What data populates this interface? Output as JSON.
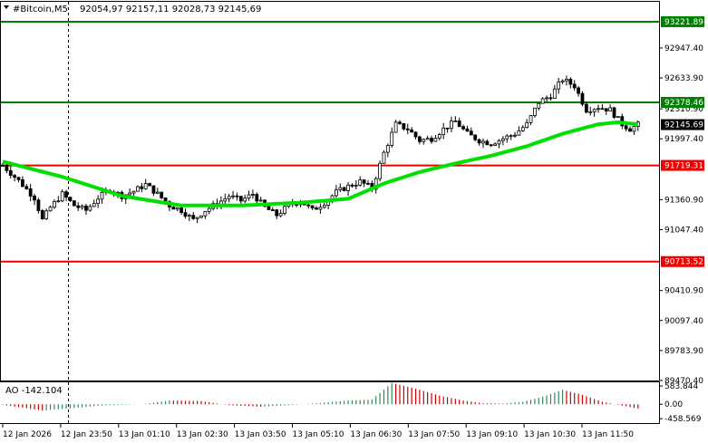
{
  "header": {
    "symbol": "#Bitcoin,M5",
    "ohlc": "92054,97 92157,11 92028,73 92145,69"
  },
  "indicator": {
    "title": "AO -142.104",
    "ticks": [
      "583.844",
      "0.00",
      "-458.569"
    ]
  },
  "colors": {
    "up_bar": "#2e8b57",
    "down_bar": "#cc0000",
    "ma": "#00e000",
    "support": "#ee0000",
    "resistance": "#008000",
    "price_label_bg": "#000000"
  },
  "chart_data": [
    {
      "type": "candlestick",
      "ylim": [
        89470,
        93430
      ],
      "y_ticks": [
        "92947.40",
        "92633.90",
        "92310.90",
        "91997.40",
        "91360.90",
        "91047.40",
        "90410.90",
        "90097.40",
        "89783.90",
        "89470.40"
      ],
      "x_ticks": [
        "12 Jan 2026",
        "12 Jan 23:50",
        "13 Jan 01:10",
        "13 Jan 02:30",
        "13 Jan 03:50",
        "13 Jan 05:10",
        "13 Jan 06:30",
        "13 Jan 07:50",
        "13 Jan 09:10",
        "13 Jan 10:30",
        "13 Jan 11:50"
      ],
      "levels": [
        {
          "value": 93221.89,
          "label": "93221.89",
          "kind": "resistance"
        },
        {
          "value": 92378.46,
          "label": "92378.46",
          "kind": "resistance"
        },
        {
          "value": 91719.31,
          "label": "91719.31",
          "kind": "support"
        },
        {
          "value": 90713.52,
          "label": "90713.52",
          "kind": "support"
        }
      ],
      "current_price": {
        "value": 92145.69,
        "label": "92145.69"
      },
      "price_path": [
        [
          0,
          91720
        ],
        [
          4,
          91560
        ],
        [
          8,
          91380
        ],
        [
          10,
          91150
        ],
        [
          12,
          91280
        ],
        [
          15,
          91420
        ],
        [
          18,
          91300
        ],
        [
          21,
          91250
        ],
        [
          24,
          91380
        ],
        [
          27,
          91470
        ],
        [
          30,
          91400
        ],
        [
          33,
          91450
        ],
        [
          36,
          91520
        ],
        [
          39,
          91420
        ],
        [
          42,
          91300
        ],
        [
          45,
          91250
        ],
        [
          48,
          91150
        ],
        [
          51,
          91250
        ],
        [
          54,
          91320
        ],
        [
          57,
          91400
        ],
        [
          60,
          91350
        ],
        [
          63,
          91420
        ],
        [
          66,
          91280
        ],
        [
          69,
          91200
        ],
        [
          72,
          91300
        ],
        [
          75,
          91350
        ],
        [
          78,
          91250
        ],
        [
          81,
          91330
        ],
        [
          84,
          91440
        ],
        [
          87,
          91500
        ],
        [
          90,
          91550
        ],
        [
          93,
          91480
        ],
        [
          96,
          91850
        ],
        [
          99,
          92150
        ],
        [
          102,
          92100
        ],
        [
          105,
          91980
        ],
        [
          108,
          92000
        ],
        [
          111,
          92100
        ],
        [
          114,
          92180
        ],
        [
          117,
          92050
        ],
        [
          120,
          91980
        ],
        [
          123,
          91950
        ],
        [
          126,
          92000
        ],
        [
          129,
          92050
        ],
        [
          132,
          92150
        ],
        [
          135,
          92380
        ],
        [
          138,
          92450
        ],
        [
          141,
          92620
        ],
        [
          144,
          92550
        ],
        [
          147,
          92300
        ],
        [
          150,
          92330
        ],
        [
          153,
          92300
        ],
        [
          156,
          92150
        ],
        [
          158,
          92100
        ],
        [
          160,
          92145.69
        ]
      ],
      "ma_path": [
        [
          0,
          91760
        ],
        [
          15,
          91600
        ],
        [
          30,
          91400
        ],
        [
          45,
          91300
        ],
        [
          60,
          91300
        ],
        [
          75,
          91330
        ],
        [
          87,
          91370
        ],
        [
          96,
          91530
        ],
        [
          105,
          91650
        ],
        [
          114,
          91740
        ],
        [
          123,
          91820
        ],
        [
          132,
          91920
        ],
        [
          141,
          92050
        ],
        [
          150,
          92150
        ],
        [
          155,
          92170
        ],
        [
          160,
          92150
        ]
      ]
    },
    {
      "type": "bar",
      "ylim": [
        -600,
        700
      ],
      "ao_path": [
        [
          0,
          -20
        ],
        [
          10,
          -200
        ],
        [
          18,
          -120
        ],
        [
          25,
          -40
        ],
        [
          35,
          0
        ],
        [
          42,
          120
        ],
        [
          50,
          100
        ],
        [
          57,
          -30
        ],
        [
          65,
          -80
        ],
        [
          72,
          -30
        ],
        [
          80,
          40
        ],
        [
          87,
          120
        ],
        [
          93,
          150
        ],
        [
          98,
          680
        ],
        [
          104,
          500
        ],
        [
          110,
          280
        ],
        [
          116,
          120
        ],
        [
          121,
          30
        ],
        [
          126,
          20
        ],
        [
          131,
          80
        ],
        [
          136,
          240
        ],
        [
          141,
          460
        ],
        [
          146,
          300
        ],
        [
          151,
          80
        ],
        [
          155,
          -20
        ],
        [
          160,
          -140
        ]
      ]
    }
  ]
}
